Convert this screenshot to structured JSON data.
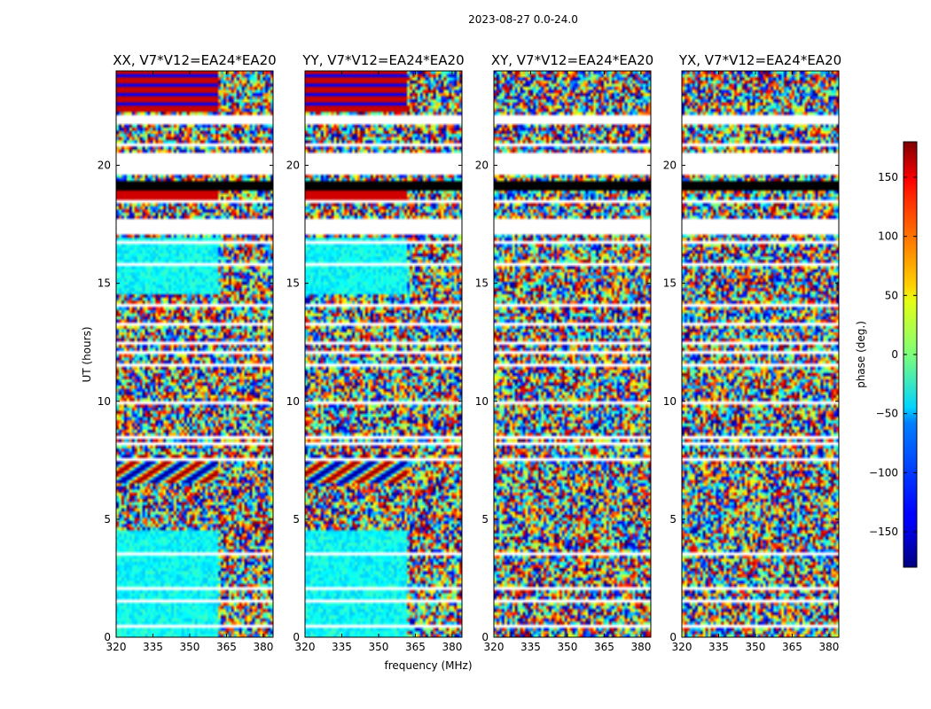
{
  "suptitle": "2023-08-27 0.0-24.0",
  "chart_data": {
    "type": "heatmap",
    "xlabel": "frequency (MHz)",
    "ylabel": "UT (hours)",
    "xlim": [
      320,
      384
    ],
    "ylim": [
      0,
      24
    ],
    "xticks": [
      320,
      335,
      350,
      365,
      380
    ],
    "yticks": [
      0,
      5,
      10,
      15,
      20
    ],
    "panels": [
      {
        "title": "XX, V7*V12=EA24*EA20",
        "pol": "XX"
      },
      {
        "title": "YY, V7*V12=EA24*EA20",
        "pol": "YY"
      },
      {
        "title": "XY, V7*V12=EA24*EA20",
        "pol": "XY"
      },
      {
        "title": "YX, V7*V12=EA24*EA20",
        "pol": "YX"
      }
    ],
    "colorbar": {
      "label": "phase (deg.)",
      "range": [
        -180,
        180
      ],
      "ticks": [
        150,
        100,
        50,
        0,
        -50,
        -100,
        -150
      ],
      "colormap": "jet"
    },
    "flagged_gaps_hours": [
      [
        0.2,
        0.3
      ],
      [
        0.4,
        0.5
      ],
      [
        1.5,
        1.6
      ],
      [
        2.0,
        2.1
      ],
      [
        2.6,
        2.7
      ],
      [
        3.5,
        3.6
      ],
      [
        3.7,
        3.75
      ],
      [
        4.1,
        4.2
      ],
      [
        4.5,
        4.55
      ],
      [
        4.9,
        5.0
      ],
      [
        6.2,
        6.3
      ],
      [
        6.5,
        6.6
      ],
      [
        7.5,
        7.6
      ],
      [
        7.8,
        7.9
      ],
      [
        8.2,
        8.3
      ],
      [
        8.4,
        8.5
      ],
      [
        9.9,
        10.0
      ],
      [
        10.5,
        10.6
      ],
      [
        11.5,
        11.6
      ],
      [
        12.0,
        12.1
      ],
      [
        12.4,
        12.5
      ],
      [
        13.2,
        13.3
      ],
      [
        14.0,
        14.1
      ],
      [
        15.8,
        15.9
      ],
      [
        16.7,
        16.8
      ],
      [
        17.1,
        17.7
      ],
      [
        18.4,
        18.5
      ],
      [
        19.6,
        20.6
      ],
      [
        20.8,
        21.0
      ],
      [
        21.8,
        22.2
      ]
    ],
    "black_band_hours": [
      19.0,
      19.3
    ]
  }
}
